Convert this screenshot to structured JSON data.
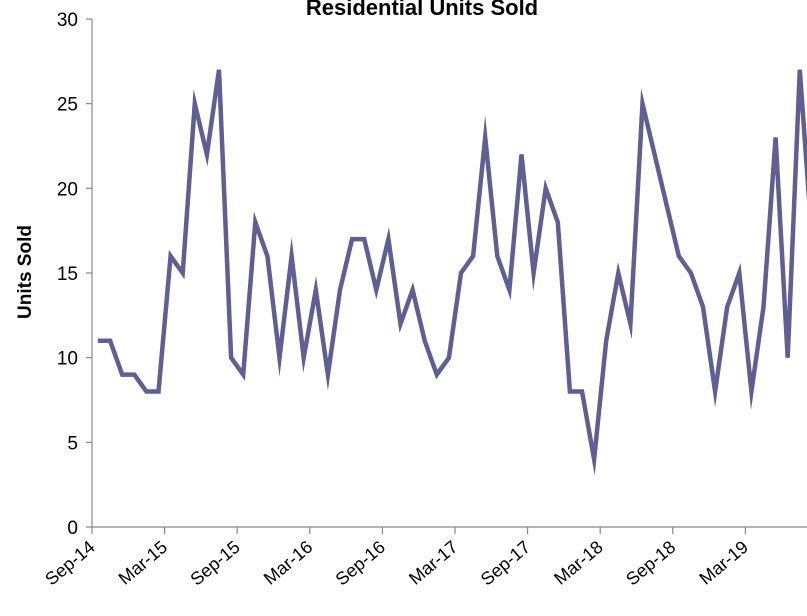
{
  "chart_data": {
    "type": "line",
    "title": "Residential Units Sold",
    "xlabel": "",
    "ylabel": "Units Sold",
    "ylim": [
      0,
      30
    ],
    "yticks": [
      0,
      5,
      10,
      15,
      20,
      25,
      30
    ],
    "xtick_labels": [
      "Sep-14",
      "Mar-15",
      "Sep-15",
      "Mar-16",
      "Sep-16",
      "Mar-17",
      "Sep-17",
      "Mar-18",
      "Sep-18",
      "Mar-19"
    ],
    "grid": false,
    "legend": "none",
    "series": [
      {
        "color": "#5f5f91",
        "x": [
          "Sep-14",
          "Oct-14",
          "Nov-14",
          "Dec-14",
          "Jan-15",
          "Feb-15",
          "Mar-15",
          "Apr-15",
          "May-15",
          "Jun-15",
          "Jul-15",
          "Aug-15",
          "Sep-15",
          "Oct-15",
          "Nov-15",
          "Dec-15",
          "Jan-16",
          "Feb-16",
          "Mar-16",
          "Apr-16",
          "May-16",
          "Jun-16",
          "Jul-16",
          "Aug-16",
          "Sep-16",
          "Oct-16",
          "Nov-16",
          "Dec-16",
          "Jan-17",
          "Feb-17",
          "Mar-17",
          "Apr-17",
          "May-17",
          "Jun-17",
          "Jul-17",
          "Aug-17",
          "Sep-17",
          "Oct-17",
          "Nov-17",
          "Dec-17",
          "Jan-18",
          "Feb-18",
          "Mar-18",
          "Apr-18",
          "May-18",
          "Jun-18",
          "Jul-18",
          "Aug-18",
          "Sep-18",
          "Oct-18",
          "Nov-18",
          "Dec-18",
          "Jan-19",
          "Feb-19",
          "Mar-19",
          "Apr-19",
          "May-19",
          "Jun-19",
          "Jul-19",
          "Aug-19",
          "Sep-19"
        ],
        "values": [
          11,
          11,
          9,
          9,
          8,
          8,
          16,
          15,
          25,
          22,
          27,
          10,
          9,
          18,
          16,
          10,
          16,
          10,
          14,
          9,
          14,
          17,
          17,
          14,
          17,
          12,
          14,
          11,
          9,
          10,
          15,
          16,
          23,
          16,
          14,
          22,
          15,
          20,
          18,
          8,
          8,
          4,
          11,
          15,
          12,
          25,
          22,
          19,
          16,
          15,
          13,
          8,
          13,
          15,
          8,
          13,
          23,
          10,
          27,
          17,
          null
        ]
      }
    ]
  }
}
